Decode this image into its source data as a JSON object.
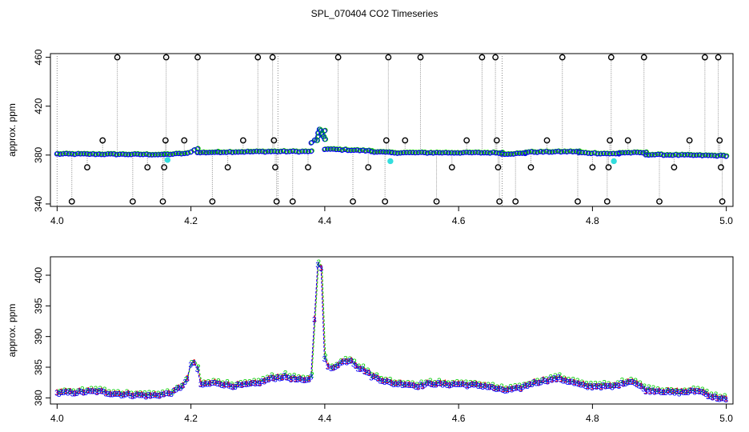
{
  "title": "SPL_070404  CO2 Timeseries",
  "chart_data": [
    {
      "type": "scatter",
      "ylabel": "approx. ppm",
      "xlim": [
        3.99,
        5.01
      ],
      "ylim": [
        338,
        463
      ],
      "xticks": [
        4.0,
        4.2,
        4.4,
        4.6,
        4.8,
        5.0
      ],
      "xtick_labels": [
        "4.0",
        "4.2",
        "4.4",
        "4.6",
        "4.8",
        "5.0"
      ],
      "yticks": [
        340,
        380,
        420,
        460
      ],
      "ytick_labels": [
        "340",
        "380",
        "420",
        "460"
      ],
      "grid": false,
      "colors": {
        "raw": "#000000",
        "smooth1": "#ff0000",
        "smooth2": "#00cc00",
        "smooth3": "#0000ff",
        "flag": "#33dddd",
        "vline": "#888888"
      },
      "baseline_segments": [
        {
          "x0": 4.0,
          "x1": 4.16,
          "y0": 381,
          "y1": 380.5
        },
        {
          "x0": 4.16,
          "x1": 4.195,
          "y0": 380.5,
          "y1": 381.5
        },
        {
          "x0": 4.195,
          "x1": 4.21,
          "y0": 381.5,
          "y1": 385.5
        },
        {
          "x0": 4.21,
          "x1": 4.24,
          "y0": 382,
          "y1": 382.5
        },
        {
          "x0": 4.24,
          "x1": 4.32,
          "y0": 382.5,
          "y1": 383
        },
        {
          "x0": 4.32,
          "x1": 4.38,
          "y0": 383,
          "y1": 383
        },
        {
          "x0": 4.38,
          "x1": 4.4,
          "y0": 390,
          "y1": 400
        },
        {
          "x0": 4.4,
          "x1": 4.47,
          "y0": 385,
          "y1": 383.5
        },
        {
          "x0": 4.47,
          "x1": 4.5,
          "y0": 383,
          "y1": 382
        },
        {
          "x0": 4.5,
          "x1": 4.665,
          "y0": 382,
          "y1": 382
        },
        {
          "x0": 4.665,
          "x1": 4.7,
          "y0": 381,
          "y1": 381.5
        },
        {
          "x0": 4.7,
          "x1": 4.78,
          "y0": 382.5,
          "y1": 383
        },
        {
          "x0": 4.78,
          "x1": 4.84,
          "y0": 382,
          "y1": 381
        },
        {
          "x0": 4.84,
          "x1": 4.88,
          "y0": 382,
          "y1": 382
        },
        {
          "x0": 4.88,
          "x1": 5.0,
          "y0": 380.5,
          "y1": 379.5
        }
      ],
      "outliers": [
        {
          "x": 4.022,
          "y": 342
        },
        {
          "x": 4.045,
          "y": 370
        },
        {
          "x": 4.068,
          "y": 392
        },
        {
          "x": 4.09,
          "y": 460
        },
        {
          "x": 4.113,
          "y": 342
        },
        {
          "x": 4.135,
          "y": 370
        },
        {
          "x": 4.158,
          "y": 342
        },
        {
          "x": 4.16,
          "y": 370
        },
        {
          "x": 4.162,
          "y": 392
        },
        {
          "x": 4.163,
          "y": 460
        },
        {
          "x": 4.19,
          "y": 392
        },
        {
          "x": 4.21,
          "y": 460
        },
        {
          "x": 4.232,
          "y": 342
        },
        {
          "x": 4.255,
          "y": 370
        },
        {
          "x": 4.278,
          "y": 392
        },
        {
          "x": 4.3,
          "y": 460
        },
        {
          "x": 4.322,
          "y": 460
        },
        {
          "x": 4.324,
          "y": 392
        },
        {
          "x": 4.326,
          "y": 370
        },
        {
          "x": 4.328,
          "y": 342
        },
        {
          "x": 4.352,
          "y": 342
        },
        {
          "x": 4.375,
          "y": 370
        },
        {
          "x": 4.42,
          "y": 460
        },
        {
          "x": 4.442,
          "y": 342
        },
        {
          "x": 4.465,
          "y": 370
        },
        {
          "x": 4.49,
          "y": 342
        },
        {
          "x": 4.492,
          "y": 392
        },
        {
          "x": 4.495,
          "y": 460
        },
        {
          "x": 4.52,
          "y": 392
        },
        {
          "x": 4.543,
          "y": 460
        },
        {
          "x": 4.567,
          "y": 342
        },
        {
          "x": 4.59,
          "y": 370
        },
        {
          "x": 4.612,
          "y": 392
        },
        {
          "x": 4.635,
          "y": 460
        },
        {
          "x": 4.655,
          "y": 460
        },
        {
          "x": 4.657,
          "y": 392
        },
        {
          "x": 4.659,
          "y": 370
        },
        {
          "x": 4.661,
          "y": 342
        },
        {
          "x": 4.685,
          "y": 342
        },
        {
          "x": 4.708,
          "y": 370
        },
        {
          "x": 4.732,
          "y": 392
        },
        {
          "x": 4.755,
          "y": 460
        },
        {
          "x": 4.778,
          "y": 342
        },
        {
          "x": 4.8,
          "y": 370
        },
        {
          "x": 4.822,
          "y": 342
        },
        {
          "x": 4.824,
          "y": 370
        },
        {
          "x": 4.826,
          "y": 392
        },
        {
          "x": 4.828,
          "y": 460
        },
        {
          "x": 4.853,
          "y": 392
        },
        {
          "x": 4.877,
          "y": 460
        },
        {
          "x": 4.9,
          "y": 342
        },
        {
          "x": 4.922,
          "y": 370
        },
        {
          "x": 4.945,
          "y": 392
        },
        {
          "x": 4.968,
          "y": 460
        },
        {
          "x": 4.988,
          "y": 460
        },
        {
          "x": 4.99,
          "y": 392
        },
        {
          "x": 4.992,
          "y": 370
        },
        {
          "x": 4.994,
          "y": 342
        }
      ],
      "flags": [
        {
          "x": 4.165,
          "y": 376
        },
        {
          "x": 4.498,
          "y": 375
        },
        {
          "x": 4.832,
          "y": 375
        }
      ],
      "long_vlines": [
        4.0,
        4.33,
        4.665
      ]
    },
    {
      "type": "line",
      "ylabel": "approx. ppm",
      "xlim": [
        3.99,
        5.01
      ],
      "ylim": [
        379,
        403
      ],
      "xticks": [
        4.0,
        4.2,
        4.4,
        4.6,
        4.8,
        5.0
      ],
      "xtick_labels": [
        "4.0",
        "4.2",
        "4.4",
        "4.6",
        "4.8",
        "5.0"
      ],
      "yticks": [
        380,
        385,
        390,
        395,
        400
      ],
      "ytick_labels": [
        "380",
        "385",
        "390",
        "395",
        "400"
      ],
      "grid": false,
      "series_style": [
        {
          "mark": "1",
          "color": "#ff0000"
        },
        {
          "mark": "2",
          "color": "#00cc00"
        },
        {
          "mark": "3",
          "color": "#0000ff"
        }
      ],
      "series": [
        {
          "x": [
            4.0,
            4.02,
            4.04,
            4.06,
            4.08,
            4.1,
            4.12,
            4.14,
            4.16,
            4.175,
            4.185,
            4.195,
            4.2,
            4.205,
            4.21,
            4.215,
            4.225,
            4.24,
            4.26,
            4.28,
            4.3,
            4.32,
            4.34,
            4.36,
            4.37,
            4.38,
            4.385,
            4.39,
            4.395,
            4.4,
            4.405,
            4.41,
            4.42,
            4.43,
            4.44,
            4.45,
            4.46,
            4.47,
            4.48,
            4.49,
            4.5,
            4.52,
            4.54,
            4.56,
            4.58,
            4.6,
            4.62,
            4.64,
            4.66,
            4.67,
            4.69,
            4.71,
            4.73,
            4.75,
            4.77,
            4.79,
            4.81,
            4.83,
            4.85,
            4.86,
            4.88,
            4.9,
            4.92,
            4.94,
            4.96,
            4.98,
            5.0
          ],
          "values": [
            380.8,
            380.9,
            381.0,
            381.1,
            380.8,
            380.6,
            380.5,
            380.4,
            380.6,
            381.0,
            381.8,
            383.0,
            385.5,
            385.8,
            384.5,
            382.2,
            382.3,
            382.5,
            382.0,
            382.1,
            382.4,
            383.2,
            383.5,
            383.0,
            382.8,
            383.4,
            393.0,
            402.0,
            401.0,
            386.5,
            385.0,
            384.8,
            385.5,
            386.0,
            386.2,
            385.0,
            384.5,
            383.6,
            383.2,
            382.8,
            382.4,
            382.3,
            382.0,
            382.4,
            382.2,
            382.3,
            382.1,
            382.0,
            381.4,
            381.3,
            381.5,
            382.4,
            382.9,
            383.2,
            382.6,
            381.9,
            382.0,
            381.8,
            382.6,
            382.8,
            381.3,
            381.2,
            380.9,
            381.0,
            381.2,
            380.2,
            379.8
          ]
        }
      ],
      "gaps_after": [
        4.16,
        4.495,
        4.665,
        4.84
      ]
    }
  ]
}
